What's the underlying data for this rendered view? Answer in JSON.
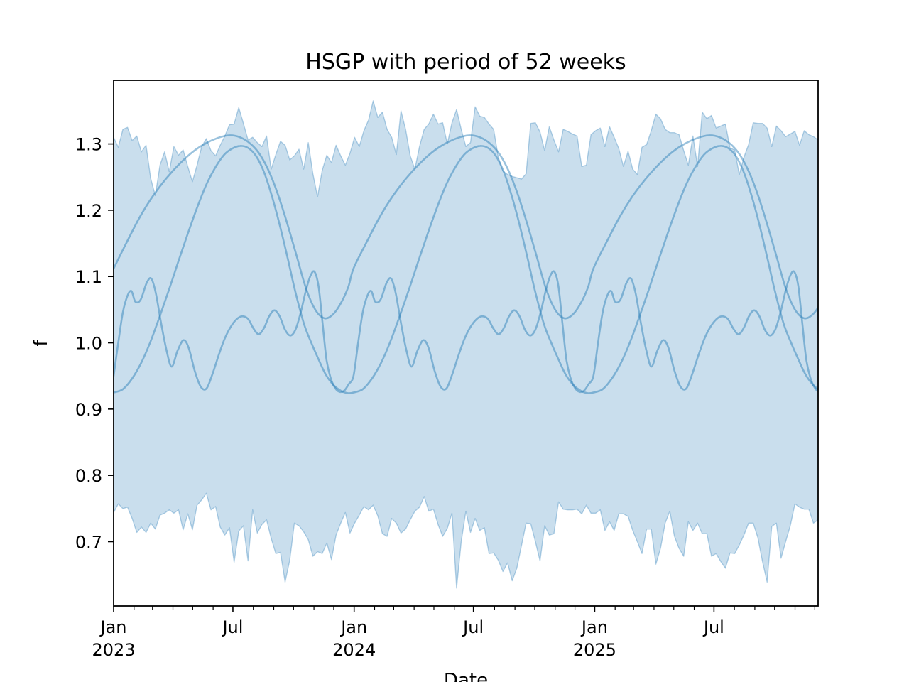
{
  "title": "HSGP with period of 52 weeks",
  "colors": {
    "line": "#1f77b4",
    "line_alpha": 0.45,
    "band_fill_alpha": 0.24,
    "band_edge_alpha": 0.32,
    "spine": "#000000",
    "text": "#000000"
  },
  "chart_data": {
    "type": "area+line",
    "title": "HSGP with period of 52 weeks",
    "xlabel": "Date",
    "ylabel": "f",
    "grid": false,
    "legend": null,
    "ylim": [
      0.603,
      1.396
    ],
    "xlim_days": [
      0,
      1069
    ],
    "x_start_date": "2023-01-01",
    "y_ticks": [
      0.7,
      0.8,
      0.9,
      1.0,
      1.1,
      1.2,
      1.3
    ],
    "y_tick_labels": [
      "0.7",
      "0.8",
      "0.9",
      "1.0",
      "1.1",
      "1.2",
      "1.3"
    ],
    "x_major_ticks": [
      {
        "day": 0,
        "line1": "Jan",
        "line2": "2023"
      },
      {
        "day": 181,
        "line1": "Jul",
        "line2": ""
      },
      {
        "day": 365,
        "line1": "Jan",
        "line2": "2024"
      },
      {
        "day": 546,
        "line1": "Jul",
        "line2": ""
      },
      {
        "day": 730,
        "line1": "Jan",
        "line2": "2025"
      },
      {
        "day": 911,
        "line1": "Jul",
        "line2": ""
      }
    ],
    "x_minor_tick_days": [
      31,
      59,
      90,
      120,
      151,
      212,
      243,
      273,
      304,
      334,
      396,
      425,
      456,
      486,
      517,
      578,
      609,
      639,
      670,
      700,
      761,
      789,
      820,
      850,
      881,
      942,
      973,
      1003,
      1034,
      1064
    ],
    "band": {
      "name": "hdi-band",
      "points_per_week": 1,
      "weeks": 153,
      "upper": [
        1.31,
        1.295,
        1.322,
        1.325,
        1.305,
        1.312,
        1.288,
        1.298,
        1.248,
        1.222,
        1.268,
        1.288,
        1.258,
        1.296,
        1.283,
        1.291,
        1.266,
        1.243,
        1.268,
        1.296,
        1.308,
        1.29,
        1.282,
        1.298,
        1.312,
        1.329,
        1.33,
        1.355,
        1.331,
        1.306,
        1.31,
        1.302,
        1.296,
        1.312,
        1.262,
        1.284,
        1.304,
        1.298,
        1.276,
        1.282,
        1.292,
        1.262,
        1.302,
        1.255,
        1.22,
        1.26,
        1.283,
        1.272,
        1.298,
        1.282,
        1.268,
        1.286,
        1.31,
        1.296,
        1.32,
        1.336,
        1.365,
        1.34,
        1.348,
        1.322,
        1.31,
        1.284,
        1.35,
        1.322,
        1.282,
        1.262,
        1.296,
        1.322,
        1.33,
        1.345,
        1.33,
        1.332,
        1.3,
        1.332,
        1.352,
        1.322,
        1.296,
        1.302,
        1.356,
        1.342,
        1.34,
        1.33,
        1.322,
        1.28,
        1.259,
        1.254,
        1.251,
        1.249,
        1.247,
        1.255,
        1.331,
        1.332,
        1.318,
        1.29,
        1.326,
        1.306,
        1.288,
        1.322,
        1.319,
        1.315,
        1.312,
        1.266,
        1.268,
        1.314,
        1.32,
        1.324,
        1.296,
        1.326,
        1.31,
        1.293,
        1.266,
        1.289,
        1.262,
        1.254,
        1.295,
        1.299,
        1.32,
        1.345,
        1.338,
        1.322,
        1.317,
        1.317,
        1.314,
        1.29,
        1.268,
        1.312,
        1.266,
        1.348,
        1.338,
        1.343,
        1.324,
        1.327,
        1.33,
        1.294,
        1.291,
        1.254,
        1.28,
        1.299,
        1.332,
        1.331,
        1.331,
        1.324,
        1.296,
        1.327,
        1.32,
        1.311,
        1.315,
        1.319,
        1.298,
        1.32,
        1.314,
        1.311,
        1.306
      ],
      "lower": [
        0.744,
        0.757,
        0.75,
        0.752,
        0.735,
        0.714,
        0.722,
        0.714,
        0.728,
        0.719,
        0.74,
        0.743,
        0.748,
        0.743,
        0.748,
        0.718,
        0.742,
        0.718,
        0.755,
        0.763,
        0.773,
        0.748,
        0.753,
        0.722,
        0.71,
        0.721,
        0.669,
        0.716,
        0.724,
        0.671,
        0.748,
        0.713,
        0.726,
        0.733,
        0.705,
        0.682,
        0.684,
        0.639,
        0.672,
        0.728,
        0.724,
        0.715,
        0.703,
        0.678,
        0.685,
        0.682,
        0.698,
        0.673,
        0.71,
        0.728,
        0.744,
        0.713,
        0.728,
        0.74,
        0.753,
        0.748,
        0.755,
        0.739,
        0.712,
        0.708,
        0.735,
        0.728,
        0.713,
        0.719,
        0.733,
        0.746,
        0.752,
        0.768,
        0.746,
        0.749,
        0.726,
        0.708,
        0.72,
        0.743,
        0.63,
        0.7,
        0.746,
        0.714,
        0.735,
        0.717,
        0.721,
        0.682,
        0.683,
        0.672,
        0.655,
        0.668,
        0.641,
        0.66,
        0.694,
        0.728,
        0.727,
        0.7,
        0.671,
        0.724,
        0.71,
        0.712,
        0.76,
        0.749,
        0.748,
        0.748,
        0.749,
        0.742,
        0.755,
        0.743,
        0.743,
        0.748,
        0.717,
        0.73,
        0.717,
        0.742,
        0.742,
        0.738,
        0.717,
        0.7,
        0.682,
        0.719,
        0.719,
        0.666,
        0.69,
        0.728,
        0.746,
        0.708,
        0.69,
        0.678,
        0.73,
        0.717,
        0.728,
        0.712,
        0.712,
        0.678,
        0.682,
        0.67,
        0.66,
        0.683,
        0.682,
        0.695,
        0.71,
        0.728,
        0.728,
        0.706,
        0.67,
        0.639,
        0.723,
        0.728,
        0.675,
        0.7,
        0.724,
        0.757,
        0.752,
        0.749,
        0.749,
        0.728,
        0.733
      ]
    },
    "samples": [
      {
        "name": "sample-slow-flat-top",
        "period_days": 364,
        "points": [
          [
            0,
            1.112
          ],
          [
            20,
            1.152
          ],
          [
            40,
            1.19
          ],
          [
            60,
            1.222
          ],
          [
            80,
            1.248
          ],
          [
            100,
            1.27
          ],
          [
            120,
            1.288
          ],
          [
            140,
            1.301
          ],
          [
            158,
            1.309
          ],
          [
            175,
            1.313
          ],
          [
            192,
            1.31
          ],
          [
            208,
            1.3
          ],
          [
            222,
            1.284
          ],
          [
            236,
            1.258
          ],
          [
            250,
            1.222
          ],
          [
            264,
            1.178
          ],
          [
            278,
            1.13
          ],
          [
            292,
            1.082
          ],
          [
            306,
            1.05
          ],
          [
            320,
            1.037
          ],
          [
            333,
            1.043
          ],
          [
            345,
            1.06
          ],
          [
            356,
            1.084
          ]
        ]
      },
      {
        "name": "sample-steep-summer-peak",
        "period_days": 364,
        "points": [
          [
            0,
            0.925
          ],
          [
            14,
            0.93
          ],
          [
            28,
            0.946
          ],
          [
            42,
            0.97
          ],
          [
            56,
            1.002
          ],
          [
            70,
            1.04
          ],
          [
            84,
            1.08
          ],
          [
            98,
            1.122
          ],
          [
            112,
            1.163
          ],
          [
            126,
            1.202
          ],
          [
            140,
            1.237
          ],
          [
            154,
            1.264
          ],
          [
            168,
            1.284
          ],
          [
            180,
            1.293
          ],
          [
            192,
            1.297
          ],
          [
            204,
            1.294
          ],
          [
            216,
            1.282
          ],
          [
            228,
            1.258
          ],
          [
            240,
            1.222
          ],
          [
            252,
            1.178
          ],
          [
            264,
            1.128
          ],
          [
            276,
            1.076
          ],
          [
            289,
            1.028
          ],
          [
            300,
            1.0
          ],
          [
            311,
            0.975
          ],
          [
            322,
            0.952
          ],
          [
            334,
            0.936
          ],
          [
            346,
            0.927
          ],
          [
            356,
            0.924
          ]
        ]
      },
      {
        "name": "sample-wiggly",
        "period_days": 364,
        "points": [
          [
            0,
            0.95
          ],
          [
            7,
            1.0
          ],
          [
            14,
            1.046
          ],
          [
            21,
            1.071
          ],
          [
            27,
            1.078
          ],
          [
            33,
            1.062
          ],
          [
            41,
            1.065
          ],
          [
            50,
            1.09
          ],
          [
            57,
            1.097
          ],
          [
            64,
            1.075
          ],
          [
            72,
            1.03
          ],
          [
            80,
            0.99
          ],
          [
            88,
            0.964
          ],
          [
            97,
            0.988
          ],
          [
            106,
            1.004
          ],
          [
            114,
            0.992
          ],
          [
            123,
            0.958
          ],
          [
            132,
            0.934
          ],
          [
            141,
            0.931
          ],
          [
            150,
            0.953
          ],
          [
            159,
            0.98
          ],
          [
            168,
            1.005
          ],
          [
            177,
            1.023
          ],
          [
            186,
            1.035
          ],
          [
            195,
            1.04
          ],
          [
            204,
            1.036
          ],
          [
            212,
            1.022
          ],
          [
            220,
            1.013
          ],
          [
            228,
            1.022
          ],
          [
            236,
            1.04
          ],
          [
            244,
            1.049
          ],
          [
            252,
            1.04
          ],
          [
            260,
            1.02
          ],
          [
            268,
            1.011
          ],
          [
            276,
            1.02
          ],
          [
            284,
            1.046
          ],
          [
            292,
            1.08
          ],
          [
            299,
            1.102
          ],
          [
            305,
            1.107
          ],
          [
            311,
            1.085
          ],
          [
            317,
            1.03
          ],
          [
            323,
            0.975
          ],
          [
            329,
            0.948
          ],
          [
            336,
            0.932
          ],
          [
            343,
            0.926
          ],
          [
            350,
            0.928
          ],
          [
            357,
            0.938
          ]
        ]
      }
    ]
  }
}
